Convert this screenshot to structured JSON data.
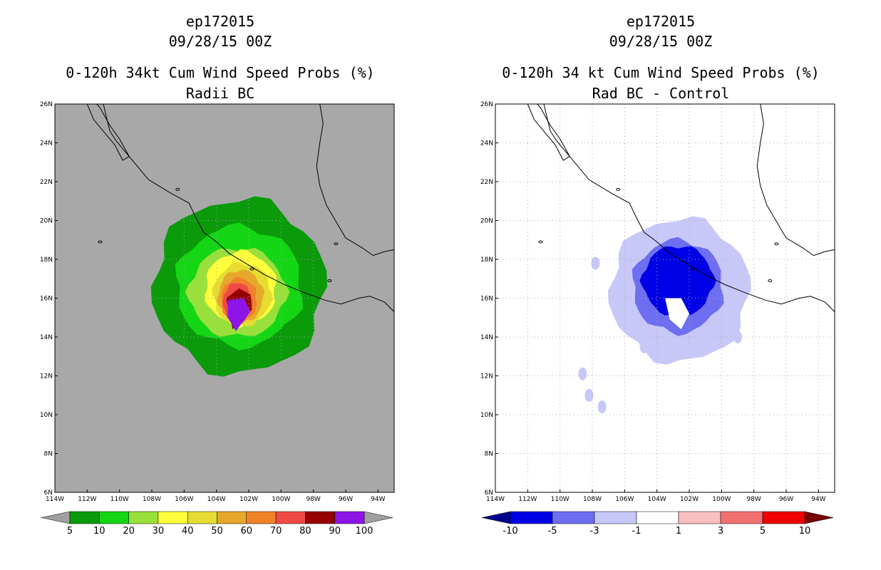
{
  "chart_data": [
    {
      "type": "contour-map",
      "title_lines": [
        "ep172015",
        "09/28/15 00Z",
        "0-120h 34kt Cum Wind Speed Probs (%)",
        "Radii BC"
      ],
      "xlim": [
        -114,
        -93
      ],
      "ylim": [
        6,
        26
      ],
      "lon_ticks": [
        -114,
        -112,
        -110,
        -108,
        -106,
        -104,
        -102,
        -100,
        -98,
        -96,
        -94
      ],
      "lon_tick_labels": [
        "114W",
        "112W",
        "110W",
        "108W",
        "106W",
        "104W",
        "102W",
        "100W",
        "98W",
        "96W",
        "94W"
      ],
      "lat_ticks": [
        6,
        8,
        10,
        12,
        14,
        16,
        18,
        20,
        22,
        24,
        26
      ],
      "lat_tick_labels": [
        "6N",
        "8N",
        "10N",
        "12N",
        "14N",
        "16N",
        "18N",
        "20N",
        "22N",
        "24N",
        "26N"
      ],
      "grid": true,
      "background_color": "#a8a8a8",
      "colorbar": {
        "boundaries": [
          "5",
          "10",
          "20",
          "30",
          "40",
          "50",
          "60",
          "70",
          "80",
          "90",
          "100"
        ],
        "colors": [
          "#0a9a0a",
          "#14d614",
          "#9ae03c",
          "#ffff3c",
          "#e6dc32",
          "#e6a82a",
          "#f08228",
          "#f04a46",
          "#960000",
          "#8c14e6"
        ],
        "extend_colors": [
          "#a0a0a0",
          "#a0a0a0"
        ]
      },
      "contours": [
        {
          "level": 5,
          "color": "#0a9a0a",
          "center_lon": -102.6,
          "center_lat": 16.6,
          "rx_deg": 5.3,
          "ry_deg": 4.5
        },
        {
          "level": 10,
          "color": "#14d614",
          "center_lon": -102.6,
          "center_lat": 16.6,
          "rx_deg": 3.9,
          "ry_deg": 3.1
        },
        {
          "level": 20,
          "color": "#9ae03c",
          "center_lon": -102.7,
          "center_lat": 16.3,
          "rx_deg": 3.0,
          "ry_deg": 2.3
        },
        {
          "level": 30,
          "color": "#ffff3c",
          "center_lon": -102.5,
          "center_lat": 16.5,
          "rx_deg": 2.2,
          "ry_deg": 1.9
        },
        {
          "level": 40,
          "color": "#e6dc32",
          "center_lon": -102.4,
          "center_lat": 16.2,
          "rx_deg": 1.8,
          "ry_deg": 1.6
        },
        {
          "level": 50,
          "color": "#e6a82a",
          "center_lon": -102.5,
          "center_lat": 16.1,
          "rx_deg": 1.4,
          "ry_deg": 1.35
        },
        {
          "level": 60,
          "color": "#f08228",
          "center_lon": -102.6,
          "center_lat": 15.9,
          "rx_deg": 1.1,
          "ry_deg": 1.15
        },
        {
          "level": 70,
          "color": "#f04a46",
          "center_lon": -102.7,
          "center_lat": 15.8,
          "rx_deg": 0.9,
          "ry_deg": 1.0
        }
      ],
      "core_polygons": [
        {
          "level": 80,
          "color": "#960000",
          "points": [
            [
              -103.4,
              16.0
            ],
            [
              -102.6,
              16.5
            ],
            [
              -101.9,
              16.2
            ],
            [
              -101.8,
              15.4
            ],
            [
              -103.0,
              14.4
            ]
          ]
        },
        {
          "level": 100,
          "color": "#8c14e6",
          "points": [
            [
              -103.3,
              15.9
            ],
            [
              -102.3,
              16.0
            ],
            [
              -101.9,
              15.3
            ],
            [
              -102.8,
              14.3
            ],
            [
              -103.3,
              15.0
            ]
          ]
        }
      ]
    },
    {
      "type": "contour-map",
      "title_lines": [
        "ep172015",
        "09/28/15 00Z",
        "0-120h 34 kt Cum Wind Speed Probs (%)",
        "Rad BC - Control"
      ],
      "xlim": [
        -114,
        -93
      ],
      "ylim": [
        6,
        26
      ],
      "lon_ticks": [
        -114,
        -112,
        -110,
        -108,
        -106,
        -104,
        -102,
        -100,
        -98,
        -96,
        -94
      ],
      "lon_tick_labels": [
        "114W",
        "112W",
        "110W",
        "108W",
        "106W",
        "104W",
        "102W",
        "100W",
        "98W",
        "96W",
        "94W"
      ],
      "lat_ticks": [
        6,
        8,
        10,
        12,
        14,
        16,
        18,
        20,
        22,
        24,
        26
      ],
      "lat_tick_labels": [
        "6N",
        "8N",
        "10N",
        "12N",
        "14N",
        "16N",
        "18N",
        "20N",
        "22N",
        "24N",
        "26N"
      ],
      "grid": true,
      "background_color": "#ffffff",
      "colorbar": {
        "boundaries": [
          "-10",
          "-5",
          "-3",
          "-1",
          "1",
          "3",
          "5",
          "10"
        ],
        "colors": [
          "#0000e6",
          "#6e6ef0",
          "#c8c8f8",
          "#ffffff",
          "#f8c0c0",
          "#f07070",
          "#f00000"
        ],
        "extend_colors": [
          "#00008c",
          "#780000"
        ]
      },
      "contours": [
        {
          "level": -1,
          "color": "#c8c8f8",
          "center_lon": -102.6,
          "center_lat": 16.4,
          "rx_deg": 4.3,
          "ry_deg": 3.7
        },
        {
          "level": -3,
          "color": "#6e6ef0",
          "center_lon": -102.7,
          "center_lat": 16.6,
          "rx_deg": 2.8,
          "ry_deg": 2.4
        },
        {
          "level": -5,
          "color": "#0000e6",
          "center_lon": -102.7,
          "center_lat": 16.9,
          "rx_deg": 2.2,
          "ry_deg": 1.8
        }
      ],
      "core_polygons": [
        {
          "level": 0,
          "color": "#ffffff",
          "points": [
            [
              -103.5,
              16.0
            ],
            [
              -102.5,
              16.0
            ],
            [
              -102.0,
              15.2
            ],
            [
              -102.5,
              14.4
            ],
            [
              -103.2,
              14.9
            ]
          ]
        }
      ],
      "specks": [
        {
          "lon": -107.8,
          "lat": 17.8,
          "color": "#c8c8f8"
        },
        {
          "lon": -107.4,
          "lat": 10.4,
          "color": "#c8c8f8"
        },
        {
          "lon": -108.2,
          "lat": 11.0,
          "color": "#c8c8f8"
        },
        {
          "lon": -108.6,
          "lat": 12.1,
          "color": "#c8c8f8"
        },
        {
          "lon": -104.8,
          "lat": 13.5,
          "color": "#c8c8f8"
        },
        {
          "lon": -99.0,
          "lat": 14.0,
          "color": "#c8c8f8"
        }
      ]
    }
  ]
}
